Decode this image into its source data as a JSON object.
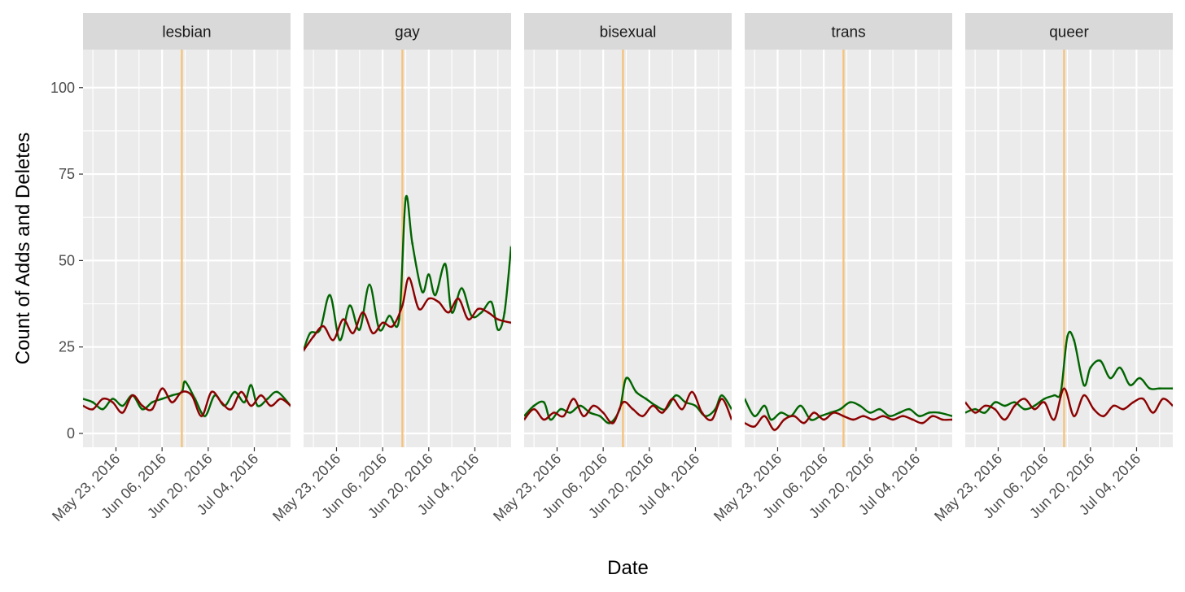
{
  "chart_data": {
    "type": "line",
    "facet_type": "small-multiples",
    "xlabel": "Date",
    "ylabel": "Count of Adds and Deletes",
    "ylim": [
      -4,
      111
    ],
    "y_ticks": [
      0,
      25,
      50,
      75,
      100
    ],
    "x_range": [
      "2016-05-13",
      "2016-07-15"
    ],
    "x_ticks": [
      "2016-05-23",
      "2016-06-06",
      "2016-06-20",
      "2016-07-04"
    ],
    "x_tick_labels": [
      "May 23, 2016",
      "Jun 06, 2016",
      "Jun 20, 2016",
      "Jul 04, 2016"
    ],
    "event_line_date": "2016-06-12",
    "grid": true,
    "legend": "none",
    "colors": {
      "adds": "#006400",
      "deletes": "#8b0000",
      "event": "#f5c27a",
      "panel_bg": "#ebebeb",
      "strip_bg": "#d9d9d9",
      "grid": "#ffffff"
    },
    "panels": [
      {
        "label": "lesbian",
        "adds": [
          [
            "2016-05-13",
            10
          ],
          [
            "2016-05-16",
            9
          ],
          [
            "2016-05-19",
            7
          ],
          [
            "2016-05-22",
            10
          ],
          [
            "2016-05-25",
            8
          ],
          [
            "2016-05-28",
            11
          ],
          [
            "2016-05-31",
            7
          ],
          [
            "2016-06-03",
            9
          ],
          [
            "2016-06-06",
            10
          ],
          [
            "2016-06-09",
            11
          ],
          [
            "2016-06-12",
            12
          ],
          [
            "2016-06-13",
            15
          ],
          [
            "2016-06-16",
            10
          ],
          [
            "2016-06-19",
            5
          ],
          [
            "2016-06-22",
            11
          ],
          [
            "2016-06-25",
            8
          ],
          [
            "2016-06-28",
            12
          ],
          [
            "2016-07-01",
            9
          ],
          [
            "2016-07-03",
            14
          ],
          [
            "2016-07-05",
            8
          ],
          [
            "2016-07-08",
            10
          ],
          [
            "2016-07-11",
            12
          ],
          [
            "2016-07-15",
            8
          ]
        ],
        "deletes": [
          [
            "2016-05-13",
            8
          ],
          [
            "2016-05-16",
            7
          ],
          [
            "2016-05-19",
            10
          ],
          [
            "2016-05-22",
            9
          ],
          [
            "2016-05-25",
            6
          ],
          [
            "2016-05-28",
            11
          ],
          [
            "2016-05-31",
            8
          ],
          [
            "2016-06-03",
            7
          ],
          [
            "2016-06-06",
            13
          ],
          [
            "2016-06-09",
            9
          ],
          [
            "2016-06-12",
            12
          ],
          [
            "2016-06-15",
            11
          ],
          [
            "2016-06-18",
            5
          ],
          [
            "2016-06-21",
            12
          ],
          [
            "2016-06-24",
            9
          ],
          [
            "2016-06-27",
            7
          ],
          [
            "2016-06-30",
            12
          ],
          [
            "2016-07-03",
            8
          ],
          [
            "2016-07-06",
            11
          ],
          [
            "2016-07-09",
            8
          ],
          [
            "2016-07-12",
            10
          ],
          [
            "2016-07-15",
            8
          ]
        ]
      },
      {
        "label": "gay",
        "adds": [
          [
            "2016-05-13",
            24
          ],
          [
            "2016-05-15",
            29
          ],
          [
            "2016-05-18",
            30
          ],
          [
            "2016-05-21",
            40
          ],
          [
            "2016-05-24",
            27
          ],
          [
            "2016-05-27",
            37
          ],
          [
            "2016-05-30",
            30
          ],
          [
            "2016-06-02",
            43
          ],
          [
            "2016-06-05",
            30
          ],
          [
            "2016-06-08",
            34
          ],
          [
            "2016-06-11",
            33
          ],
          [
            "2016-06-13",
            68
          ],
          [
            "2016-06-15",
            55
          ],
          [
            "2016-06-18",
            41
          ],
          [
            "2016-06-20",
            46
          ],
          [
            "2016-06-22",
            40
          ],
          [
            "2016-06-25",
            49
          ],
          [
            "2016-06-27",
            35
          ],
          [
            "2016-06-30",
            42
          ],
          [
            "2016-07-03",
            34
          ],
          [
            "2016-07-06",
            35
          ],
          [
            "2016-07-09",
            38
          ],
          [
            "2016-07-11",
            30
          ],
          [
            "2016-07-13",
            35
          ],
          [
            "2016-07-15",
            54
          ]
        ],
        "deletes": [
          [
            "2016-05-13",
            24
          ],
          [
            "2016-05-16",
            28
          ],
          [
            "2016-05-19",
            31
          ],
          [
            "2016-05-22",
            27
          ],
          [
            "2016-05-25",
            33
          ],
          [
            "2016-05-28",
            29
          ],
          [
            "2016-05-31",
            35
          ],
          [
            "2016-06-03",
            29
          ],
          [
            "2016-06-06",
            32
          ],
          [
            "2016-06-09",
            31
          ],
          [
            "2016-06-12",
            37
          ],
          [
            "2016-06-14",
            45
          ],
          [
            "2016-06-17",
            36
          ],
          [
            "2016-06-20",
            39
          ],
          [
            "2016-06-23",
            38
          ],
          [
            "2016-06-26",
            35
          ],
          [
            "2016-06-29",
            39
          ],
          [
            "2016-07-02",
            33
          ],
          [
            "2016-07-05",
            36
          ],
          [
            "2016-07-08",
            35
          ],
          [
            "2016-07-11",
            33
          ],
          [
            "2016-07-15",
            32
          ]
        ]
      },
      {
        "label": "bisexual",
        "adds": [
          [
            "2016-05-13",
            5
          ],
          [
            "2016-05-16",
            8
          ],
          [
            "2016-05-19",
            9
          ],
          [
            "2016-05-21",
            4
          ],
          [
            "2016-05-24",
            7
          ],
          [
            "2016-05-27",
            6
          ],
          [
            "2016-05-30",
            8
          ],
          [
            "2016-06-02",
            6
          ],
          [
            "2016-06-05",
            5
          ],
          [
            "2016-06-08",
            3
          ],
          [
            "2016-06-11",
            7
          ],
          [
            "2016-06-13",
            16
          ],
          [
            "2016-06-16",
            12
          ],
          [
            "2016-06-19",
            10
          ],
          [
            "2016-06-22",
            8
          ],
          [
            "2016-06-25",
            7
          ],
          [
            "2016-06-28",
            11
          ],
          [
            "2016-07-01",
            9
          ],
          [
            "2016-07-04",
            8
          ],
          [
            "2016-07-07",
            5
          ],
          [
            "2016-07-10",
            7
          ],
          [
            "2016-07-12",
            11
          ],
          [
            "2016-07-15",
            7
          ]
        ],
        "deletes": [
          [
            "2016-05-13",
            4
          ],
          [
            "2016-05-16",
            7
          ],
          [
            "2016-05-19",
            4
          ],
          [
            "2016-05-22",
            6
          ],
          [
            "2016-05-25",
            5
          ],
          [
            "2016-05-28",
            10
          ],
          [
            "2016-05-31",
            5
          ],
          [
            "2016-06-03",
            8
          ],
          [
            "2016-06-06",
            6
          ],
          [
            "2016-06-09",
            3
          ],
          [
            "2016-06-12",
            9
          ],
          [
            "2016-06-15",
            7
          ],
          [
            "2016-06-18",
            5
          ],
          [
            "2016-06-21",
            8
          ],
          [
            "2016-06-24",
            6
          ],
          [
            "2016-06-27",
            10
          ],
          [
            "2016-06-30",
            7
          ],
          [
            "2016-07-03",
            12
          ],
          [
            "2016-07-06",
            6
          ],
          [
            "2016-07-09",
            4
          ],
          [
            "2016-07-12",
            10
          ],
          [
            "2016-07-15",
            4
          ]
        ]
      },
      {
        "label": "trans",
        "adds": [
          [
            "2016-05-13",
            10
          ],
          [
            "2016-05-16",
            5
          ],
          [
            "2016-05-19",
            8
          ],
          [
            "2016-05-21",
            4
          ],
          [
            "2016-05-24",
            6
          ],
          [
            "2016-05-27",
            5
          ],
          [
            "2016-05-30",
            8
          ],
          [
            "2016-06-02",
            4
          ],
          [
            "2016-06-05",
            5
          ],
          [
            "2016-06-08",
            6
          ],
          [
            "2016-06-11",
            7
          ],
          [
            "2016-06-14",
            9
          ],
          [
            "2016-06-17",
            8
          ],
          [
            "2016-06-20",
            6
          ],
          [
            "2016-06-23",
            7
          ],
          [
            "2016-06-26",
            5
          ],
          [
            "2016-06-29",
            6
          ],
          [
            "2016-07-02",
            7
          ],
          [
            "2016-07-05",
            5
          ],
          [
            "2016-07-08",
            6
          ],
          [
            "2016-07-11",
            6
          ],
          [
            "2016-07-15",
            5
          ]
        ],
        "deletes": [
          [
            "2016-05-13",
            3
          ],
          [
            "2016-05-16",
            2
          ],
          [
            "2016-05-19",
            5
          ],
          [
            "2016-05-22",
            1
          ],
          [
            "2016-05-25",
            4
          ],
          [
            "2016-05-28",
            5
          ],
          [
            "2016-05-31",
            3
          ],
          [
            "2016-06-03",
            6
          ],
          [
            "2016-06-06",
            4
          ],
          [
            "2016-06-09",
            6
          ],
          [
            "2016-06-12",
            5
          ],
          [
            "2016-06-15",
            4
          ],
          [
            "2016-06-18",
            5
          ],
          [
            "2016-06-21",
            4
          ],
          [
            "2016-06-24",
            5
          ],
          [
            "2016-06-27",
            4
          ],
          [
            "2016-06-30",
            5
          ],
          [
            "2016-07-03",
            4
          ],
          [
            "2016-07-06",
            3
          ],
          [
            "2016-07-09",
            5
          ],
          [
            "2016-07-12",
            4
          ],
          [
            "2016-07-15",
            4
          ]
        ]
      },
      {
        "label": "queer",
        "adds": [
          [
            "2016-05-13",
            6
          ],
          [
            "2016-05-16",
            7
          ],
          [
            "2016-05-19",
            6
          ],
          [
            "2016-05-22",
            9
          ],
          [
            "2016-05-25",
            8
          ],
          [
            "2016-05-28",
            9
          ],
          [
            "2016-05-31",
            7
          ],
          [
            "2016-06-03",
            8
          ],
          [
            "2016-06-06",
            10
          ],
          [
            "2016-06-09",
            11
          ],
          [
            "2016-06-11",
            12
          ],
          [
            "2016-06-13",
            28
          ],
          [
            "2016-06-15",
            27
          ],
          [
            "2016-06-18",
            14
          ],
          [
            "2016-06-20",
            19
          ],
          [
            "2016-06-23",
            21
          ],
          [
            "2016-06-26",
            16
          ],
          [
            "2016-06-29",
            19
          ],
          [
            "2016-07-02",
            14
          ],
          [
            "2016-07-05",
            16
          ],
          [
            "2016-07-08",
            13
          ],
          [
            "2016-07-11",
            13
          ],
          [
            "2016-07-15",
            13
          ]
        ],
        "deletes": [
          [
            "2016-05-13",
            9
          ],
          [
            "2016-05-16",
            6
          ],
          [
            "2016-05-19",
            8
          ],
          [
            "2016-05-22",
            7
          ],
          [
            "2016-05-25",
            4
          ],
          [
            "2016-05-28",
            8
          ],
          [
            "2016-05-31",
            10
          ],
          [
            "2016-06-03",
            7
          ],
          [
            "2016-06-06",
            9
          ],
          [
            "2016-06-09",
            4
          ],
          [
            "2016-06-12",
            13
          ],
          [
            "2016-06-15",
            5
          ],
          [
            "2016-06-18",
            11
          ],
          [
            "2016-06-21",
            7
          ],
          [
            "2016-06-24",
            5
          ],
          [
            "2016-06-27",
            8
          ],
          [
            "2016-06-30",
            7
          ],
          [
            "2016-07-03",
            9
          ],
          [
            "2016-07-06",
            10
          ],
          [
            "2016-07-09",
            6
          ],
          [
            "2016-07-12",
            10
          ],
          [
            "2016-07-15",
            8
          ]
        ]
      }
    ]
  }
}
